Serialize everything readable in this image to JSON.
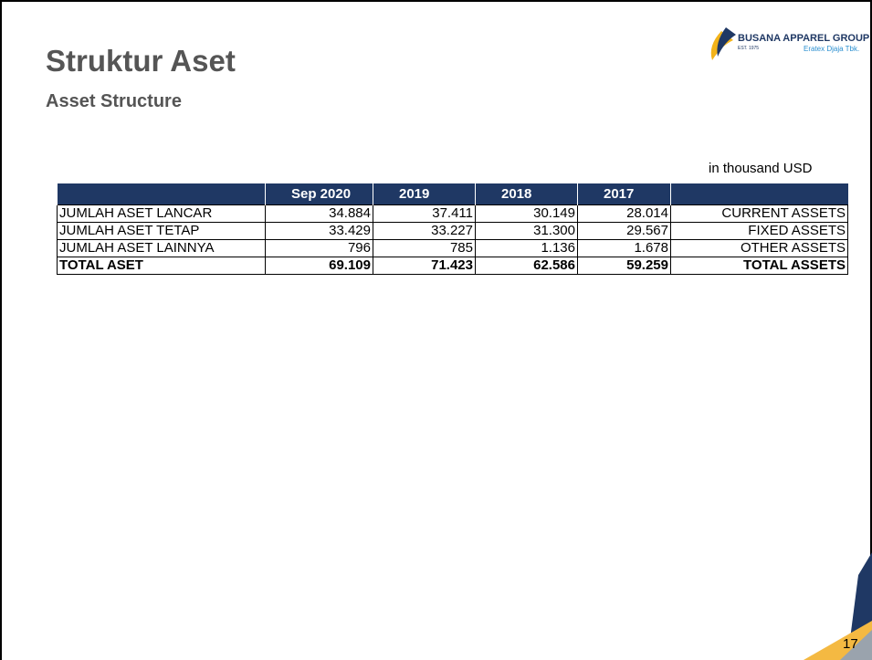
{
  "header": {
    "title": "Struktur Aset",
    "subtitle": "Asset Structure"
  },
  "logo": {
    "name": "BUSANA APPAREL GROUP",
    "est": "EST. 1975",
    "company": "Eratex Djaja Tbk."
  },
  "unit_note": "in thousand USD",
  "table": {
    "columns": [
      "",
      "Sep 2020",
      "2019",
      "2018",
      "2017",
      ""
    ],
    "rows": [
      [
        "JUMLAH ASET LANCAR",
        "34.884",
        "37.411",
        "30.149",
        "28.014",
        "CURRENT ASSETS"
      ],
      [
        "JUMLAH ASET TETAP",
        "33.429",
        "33.227",
        "31.300",
        "29.567",
        "FIXED ASSETS"
      ],
      [
        "JUMLAH ASET LAINNYA",
        "796",
        "785",
        "1.136",
        "1.678",
        "OTHER ASSETS"
      ],
      [
        "TOTAL ASET",
        "69.109",
        "71.423",
        "62.586",
        "59.259",
        "TOTAL ASSETS"
      ]
    ]
  },
  "page_number": "17"
}
